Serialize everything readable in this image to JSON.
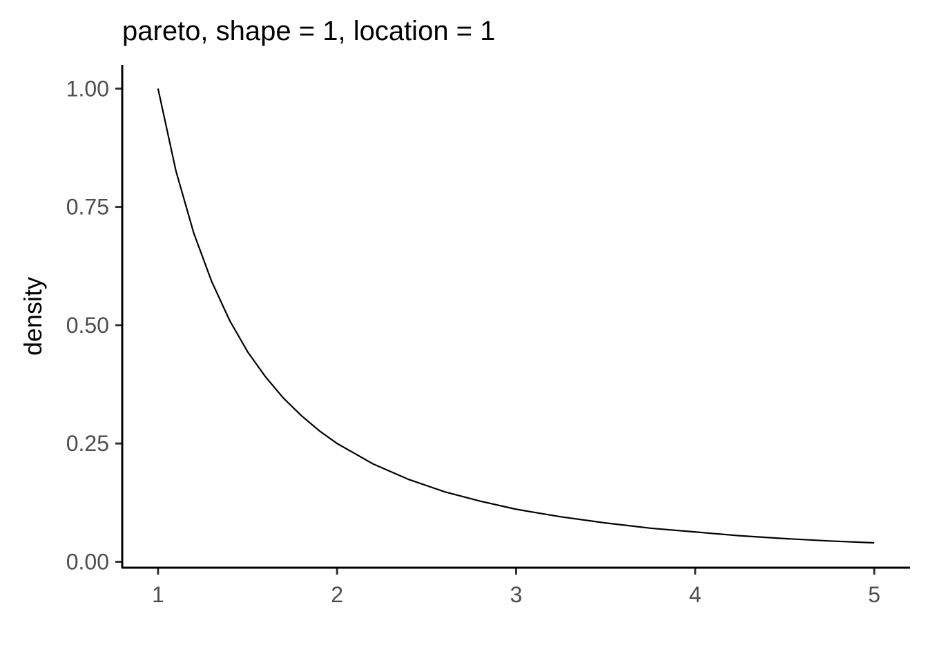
{
  "chart_data": {
    "type": "line",
    "title": "pareto, shape = 1, location = 1",
    "xlabel": "",
    "ylabel": "density",
    "xlim": [
      0.8,
      5.2
    ],
    "ylim": [
      -0.0125,
      1.05
    ],
    "x_ticks": [
      1,
      2,
      3,
      4,
      5
    ],
    "x_tick_labels": [
      "1",
      "2",
      "3",
      "4",
      "5"
    ],
    "y_ticks": [
      0,
      0.25,
      0.5,
      0.75,
      1.0
    ],
    "y_tick_labels": [
      "0.00",
      "0.25",
      "0.50",
      "0.75",
      "1.00"
    ],
    "grid": false,
    "legend": "none",
    "line_color": "#000000",
    "series": [
      {
        "x": [
          1.0,
          1.1,
          1.2,
          1.3,
          1.4,
          1.5,
          1.6,
          1.7,
          1.8,
          1.9,
          2.0,
          2.2,
          2.4,
          2.6,
          2.8,
          3.0,
          3.25,
          3.5,
          3.75,
          4.0,
          4.25,
          4.5,
          4.75,
          5.0
        ],
        "y": [
          1.0,
          0.826,
          0.694,
          0.592,
          0.51,
          0.444,
          0.391,
          0.346,
          0.309,
          0.277,
          0.25,
          0.207,
          0.174,
          0.148,
          0.128,
          0.111,
          0.095,
          0.082,
          0.071,
          0.063,
          0.055,
          0.049,
          0.044,
          0.04
        ]
      }
    ]
  }
}
